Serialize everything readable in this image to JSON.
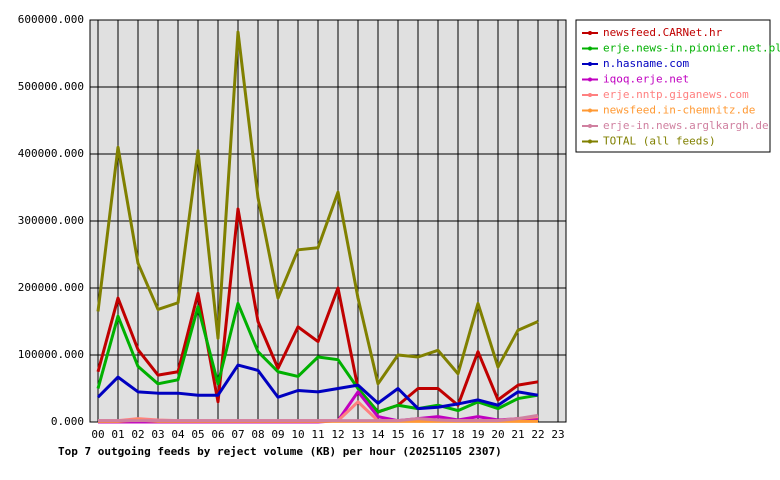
{
  "chart_data": {
    "type": "line",
    "title": "Top 7 outgoing feeds by reject volume (KB) per hour (20251105 2307)",
    "categories": [
      "00",
      "01",
      "02",
      "03",
      "04",
      "05",
      "06",
      "07",
      "08",
      "09",
      "10",
      "11",
      "12",
      "13",
      "14",
      "15",
      "16",
      "17",
      "18",
      "19",
      "20",
      "21",
      "22",
      "23"
    ],
    "ylim": [
      0,
      600000
    ],
    "yticks": [
      {
        "value": 0,
        "label": "0.000"
      },
      {
        "value": 100000,
        "label": "100000.000"
      },
      {
        "value": 200000,
        "label": "200000.000"
      },
      {
        "value": 300000,
        "label": "300000.000"
      },
      {
        "value": 400000,
        "label": "400000.000"
      },
      {
        "value": 500000,
        "label": "500000.000"
      },
      {
        "value": 600000,
        "label": "600000.000"
      }
    ],
    "grid": true,
    "legend": "right",
    "series": [
      {
        "name": "newsfeed.CARNet.hr",
        "color": "#c00000",
        "values": [
          75000,
          185000,
          108000,
          70000,
          75000,
          192000,
          30000,
          318000,
          150000,
          80000,
          142000,
          120000,
          200000,
          50000,
          15000,
          25000,
          50000,
          50000,
          25000,
          105000,
          33000,
          55000,
          60000,
          null
        ]
      },
      {
        "name": "erje.news-in.pionier.net.pl",
        "color": "#00b000",
        "values": [
          50000,
          158000,
          83000,
          57000,
          63000,
          172000,
          57000,
          177000,
          105000,
          75000,
          68000,
          97000,
          93000,
          50000,
          15000,
          25000,
          20000,
          25000,
          17000,
          30000,
          20000,
          35000,
          40000,
          null
        ]
      },
      {
        "name": "n.hasname.com",
        "color": "#0000c0",
        "values": [
          37000,
          67000,
          45000,
          43000,
          43000,
          40000,
          40000,
          85000,
          77000,
          37000,
          47000,
          45000,
          50000,
          55000,
          28000,
          50000,
          20000,
          22000,
          27000,
          33000,
          25000,
          45000,
          40000,
          null
        ]
      },
      {
        "name": "iqoq.erje.net",
        "color": "#c000c0",
        "values": [
          0,
          0,
          0,
          0,
          0,
          0,
          0,
          0,
          0,
          0,
          0,
          0,
          2000,
          45000,
          8000,
          2000,
          5000,
          8000,
          3000,
          8000,
          3000,
          5000,
          5000,
          null
        ]
      },
      {
        "name": "erje.nntp.giganews.com",
        "color": "#ff8080",
        "values": [
          2000,
          2000,
          5000,
          3000,
          2000,
          2000,
          2000,
          2000,
          2000,
          2000,
          2000,
          2000,
          2000,
          30000,
          2000,
          2000,
          2000,
          2000,
          2000,
          2000,
          2000,
          5000,
          8000,
          null
        ]
      },
      {
        "name": "newsfeed.in-chemnitz.de",
        "color": "#ff9933",
        "values": [
          1000,
          1000,
          3000,
          1000,
          1000,
          1000,
          1000,
          1000,
          1000,
          1000,
          1000,
          1000,
          1000,
          1000,
          1000,
          1000,
          1000,
          1000,
          1000,
          1000,
          1000,
          1000,
          1000,
          null
        ]
      },
      {
        "name": "erje-in.news.arglkargh.de",
        "color": "#d080a0",
        "values": [
          2000,
          2000,
          2000,
          2000,
          2000,
          2000,
          2000,
          2000,
          2000,
          2000,
          2000,
          2000,
          2000,
          2000,
          2000,
          2000,
          5000,
          3000,
          2000,
          2000,
          2000,
          5000,
          10000,
          null
        ]
      },
      {
        "name": "TOTAL (all feeds)",
        "color": "#808000",
        "values": [
          165000,
          410000,
          237000,
          168000,
          178000,
          405000,
          125000,
          582000,
          335000,
          185000,
          257000,
          260000,
          343000,
          185000,
          57000,
          100000,
          97000,
          107000,
          72000,
          177000,
          82000,
          137000,
          150000,
          null
        ]
      }
    ]
  }
}
